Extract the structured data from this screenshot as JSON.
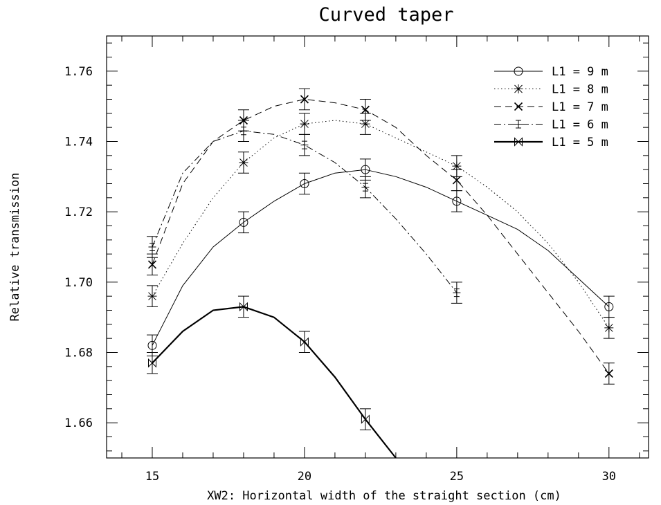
{
  "chart_data": {
    "type": "line",
    "title": "Curved taper",
    "xlabel": "XW2: Horizontal width of the straight section (cm)",
    "ylabel": "Relative transmission",
    "xlim": [
      13.5,
      31.3
    ],
    "ylim": [
      1.65,
      1.77
    ],
    "xticks": [
      15,
      20,
      25,
      30
    ],
    "yticks": [
      1.66,
      1.68,
      1.7,
      1.72,
      1.74,
      1.76
    ],
    "ytick_labels": [
      "1.66",
      "1.68",
      "1.70",
      "1.72",
      "1.74",
      "1.76"
    ],
    "x_minor_step": 1,
    "y_minor_step": 0.004,
    "grid": false,
    "legend_position": "top-right",
    "series": [
      {
        "name": "L1 = 9 m",
        "marker": "circle",
        "dash": "solid",
        "width": 1,
        "x": [
          15,
          18,
          20,
          22,
          25,
          30
        ],
        "values": [
          1.682,
          1.717,
          1.728,
          1.732,
          1.723,
          1.693
        ],
        "err": 0.003,
        "curve": [
          [
            15,
            1.682
          ],
          [
            16,
            1.699
          ],
          [
            17,
            1.71
          ],
          [
            18,
            1.717
          ],
          [
            19,
            1.723
          ],
          [
            20,
            1.728
          ],
          [
            21,
            1.731
          ],
          [
            22,
            1.732
          ],
          [
            23,
            1.73
          ],
          [
            24,
            1.727
          ],
          [
            25,
            1.723
          ],
          [
            26,
            1.719
          ],
          [
            27,
            1.715
          ],
          [
            28,
            1.709
          ],
          [
            29,
            1.701
          ],
          [
            30,
            1.693
          ]
        ]
      },
      {
        "name": "L1 = 8 m",
        "marker": "asterisk",
        "dash": "dotted",
        "width": 1,
        "x": [
          15,
          18,
          20,
          22,
          25,
          30
        ],
        "values": [
          1.696,
          1.734,
          1.745,
          1.745,
          1.733,
          1.687
        ],
        "err": 0.003,
        "curve": [
          [
            15,
            1.696
          ],
          [
            16,
            1.711
          ],
          [
            17,
            1.724
          ],
          [
            18,
            1.734
          ],
          [
            19,
            1.741
          ],
          [
            20,
            1.745
          ],
          [
            21,
            1.746
          ],
          [
            22,
            1.745
          ],
          [
            23,
            1.741
          ],
          [
            24,
            1.737
          ],
          [
            25,
            1.733
          ],
          [
            26,
            1.727
          ],
          [
            27,
            1.72
          ],
          [
            28,
            1.711
          ],
          [
            29,
            1.7
          ],
          [
            30,
            1.687
          ]
        ]
      },
      {
        "name": "L1 = 7 m",
        "marker": "cross",
        "dash": "dashed",
        "width": 1,
        "x": [
          15,
          18,
          20,
          22,
          25,
          30
        ],
        "values": [
          1.705,
          1.746,
          1.752,
          1.749,
          1.729,
          1.674
        ],
        "err": 0.003,
        "curve": [
          [
            15,
            1.705
          ],
          [
            16,
            1.728
          ],
          [
            17,
            1.74
          ],
          [
            18,
            1.746
          ],
          [
            19,
            1.75
          ],
          [
            20,
            1.752
          ],
          [
            21,
            1.751
          ],
          [
            22,
            1.749
          ],
          [
            23,
            1.744
          ],
          [
            24,
            1.736
          ],
          [
            25,
            1.729
          ],
          [
            26,
            1.719
          ],
          [
            27,
            1.708
          ],
          [
            28,
            1.697
          ],
          [
            29,
            1.686
          ],
          [
            30,
            1.674
          ]
        ]
      },
      {
        "name": "L1 = 6 m",
        "marker": "plus",
        "dash": "dashdot",
        "width": 1,
        "x": [
          15,
          18,
          20,
          22,
          25
        ],
        "values": [
          1.71,
          1.743,
          1.739,
          1.727,
          1.697
        ],
        "err": 0.003,
        "curve": [
          [
            15,
            1.71
          ],
          [
            16,
            1.731
          ],
          [
            17,
            1.74
          ],
          [
            18,
            1.743
          ],
          [
            19,
            1.742
          ],
          [
            20,
            1.739
          ],
          [
            21,
            1.734
          ],
          [
            22,
            1.727
          ],
          [
            23,
            1.718
          ],
          [
            24,
            1.708
          ],
          [
            25,
            1.697
          ]
        ]
      },
      {
        "name": "L1 = 5 m",
        "marker": "bowtie",
        "dash": "solid",
        "width": 2.2,
        "x": [
          15,
          18,
          20,
          22
        ],
        "values": [
          1.677,
          1.693,
          1.683,
          1.661
        ],
        "err": 0.003,
        "curve": [
          [
            15,
            1.677
          ],
          [
            16,
            1.686
          ],
          [
            17,
            1.692
          ],
          [
            18,
            1.693
          ],
          [
            19,
            1.69
          ],
          [
            20,
            1.683
          ],
          [
            21,
            1.673
          ],
          [
            22,
            1.661
          ],
          [
            23,
            1.65
          ]
        ]
      }
    ]
  }
}
